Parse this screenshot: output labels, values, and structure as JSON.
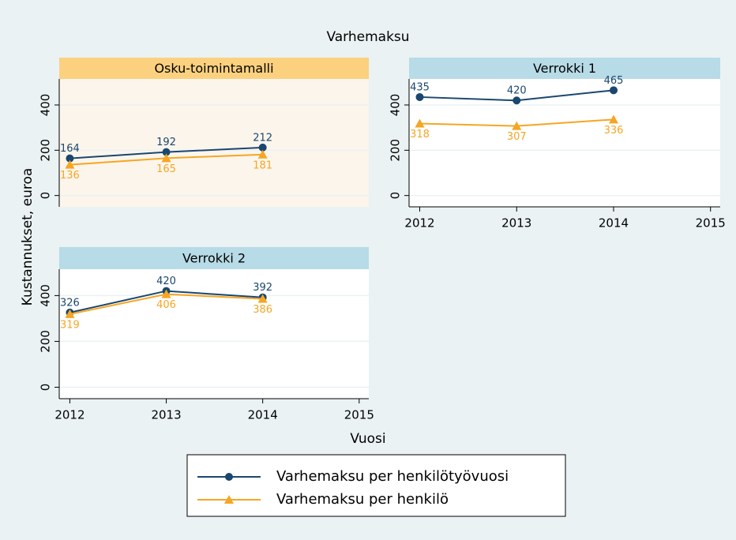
{
  "figure": {
    "title": "Varhemaksu",
    "y_label": "Kustannukset, euroa",
    "x_label": "Vuosi",
    "background": "#eaf2f3"
  },
  "chart_data": [
    {
      "type": "line",
      "title": "Osku-toimintamalli",
      "header_color": "#fbd17f",
      "plot_color": "#fcf5ec",
      "x": [
        2012,
        2013,
        2014
      ],
      "xlim": [
        2011.89,
        2015.1
      ],
      "ylim": [
        -50,
        515
      ],
      "yticks": [
        0,
        200,
        400
      ],
      "grid": true,
      "series": [
        {
          "name": "Varhemaksu per henkilötyövuosi",
          "color": "#1a476f",
          "marker": "circle",
          "values": [
            164,
            192,
            212
          ]
        },
        {
          "name": "Varhemaksu per henkilö",
          "color": "#f5a623",
          "marker": "triangle",
          "values": [
            136,
            165,
            181
          ]
        }
      ]
    },
    {
      "type": "line",
      "title": "Verrokki 1",
      "header_color": "#b7dbe7",
      "plot_color": "#ffffff",
      "x": [
        2012,
        2013,
        2014
      ],
      "xlim": [
        2011.89,
        2015.1
      ],
      "xticks": [
        2012,
        2013,
        2014,
        2015
      ],
      "ylim": [
        -50,
        515
      ],
      "yticks": [
        0,
        200,
        400
      ],
      "grid": true,
      "series": [
        {
          "name": "Varhemaksu per henkilötyövuosi",
          "color": "#1a476f",
          "marker": "circle",
          "values": [
            435,
            420,
            465
          ]
        },
        {
          "name": "Varhemaksu per henkilö",
          "color": "#f5a623",
          "marker": "triangle",
          "values": [
            318,
            307,
            336
          ]
        }
      ]
    },
    {
      "type": "line",
      "title": "Verrokki 2",
      "header_color": "#b7dbe7",
      "plot_color": "#ffffff",
      "x": [
        2012,
        2013,
        2014
      ],
      "xlim": [
        2011.89,
        2015.1
      ],
      "xticks": [
        2012,
        2013,
        2014,
        2015
      ],
      "ylim": [
        -50,
        515
      ],
      "yticks": [
        0,
        200,
        400
      ],
      "grid": true,
      "series": [
        {
          "name": "Varhemaksu per henkilötyövuosi",
          "color": "#1a476f",
          "marker": "circle",
          "values": [
            326,
            420,
            392
          ]
        },
        {
          "name": "Varhemaksu per henkilö",
          "color": "#f5a623",
          "marker": "triangle",
          "values": [
            319,
            406,
            386
          ]
        }
      ]
    }
  ]
}
